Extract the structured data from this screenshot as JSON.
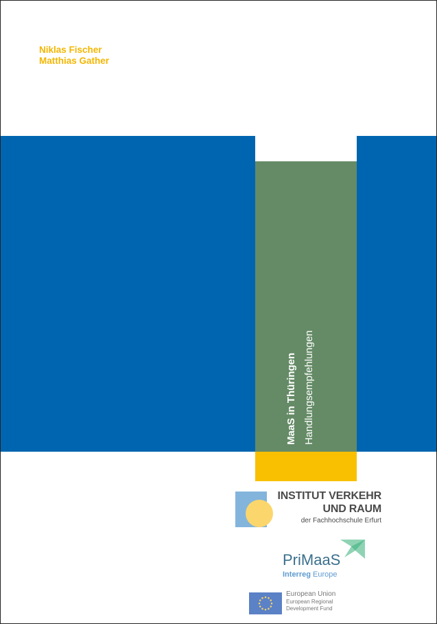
{
  "authors": [
    "Niklas Fischer",
    "Matthias Gather"
  ],
  "title": "MaaS in Thüringen",
  "subtitle": "Handlungsempfehlungen",
  "logos": {
    "institute": {
      "line1": "INSTITUT VERKEHR",
      "line2": "UND RAUM",
      "line3": "der Fachhochschule Erfurt"
    },
    "primaas": {
      "name": "PriMaaS",
      "program_bold": "Interreg",
      "program_rest": " Europe"
    },
    "eu": {
      "line1": "European Union",
      "line2": "European Regional",
      "line3": "Development Fund"
    }
  },
  "colors": {
    "blue_band": "#0065b0",
    "green_panel": "#658b66",
    "yellow_bar": "#f8c000",
    "author_text": "#f4b600"
  }
}
